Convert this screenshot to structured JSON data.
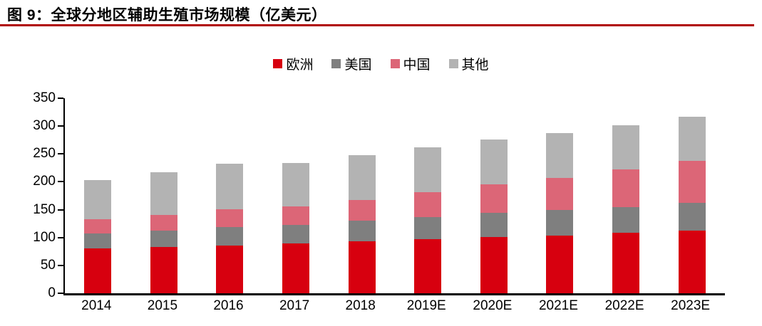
{
  "figure": {
    "title": "图 9：全球分地区辅助生殖市场规模（亿美元）",
    "accent_rule_color": "#B00000"
  },
  "chart_data": {
    "type": "bar",
    "stacked": true,
    "title": "图 9：全球分地区辅助生殖市场规模（亿美元）",
    "unit": "亿美元",
    "categories": [
      "2014",
      "2015",
      "2016",
      "2017",
      "2018",
      "2019E",
      "2020E",
      "2021E",
      "2022E",
      "2023E"
    ],
    "series": [
      {
        "name": "欧洲",
        "color": "#D7000F",
        "values": [
          80,
          83,
          86,
          89,
          93,
          97,
          101,
          104,
          108,
          112
        ]
      },
      {
        "name": "美国",
        "color": "#7F7F7F",
        "values": [
          27,
          30,
          33,
          34,
          37,
          40,
          43,
          45,
          47,
          50
        ]
      },
      {
        "name": "中国",
        "color": "#DC6677",
        "values": [
          26,
          27,
          32,
          33,
          38,
          45,
          51,
          58,
          67,
          76
        ]
      },
      {
        "name": "其他",
        "color": "#B3B3B3",
        "values": [
          70,
          77,
          81,
          78,
          80,
          80,
          81,
          81,
          80,
          79
        ]
      }
    ],
    "totals": [
      203,
      217,
      232,
      234,
      248,
      262,
      276,
      288,
      302,
      317
    ],
    "ylim": [
      0,
      350
    ],
    "y_ticks": [
      0,
      50,
      100,
      150,
      200,
      250,
      300,
      350
    ],
    "xlabel": "",
    "ylabel": "",
    "grid": false,
    "legend_position": "top-center",
    "axis_color": "#000000"
  }
}
